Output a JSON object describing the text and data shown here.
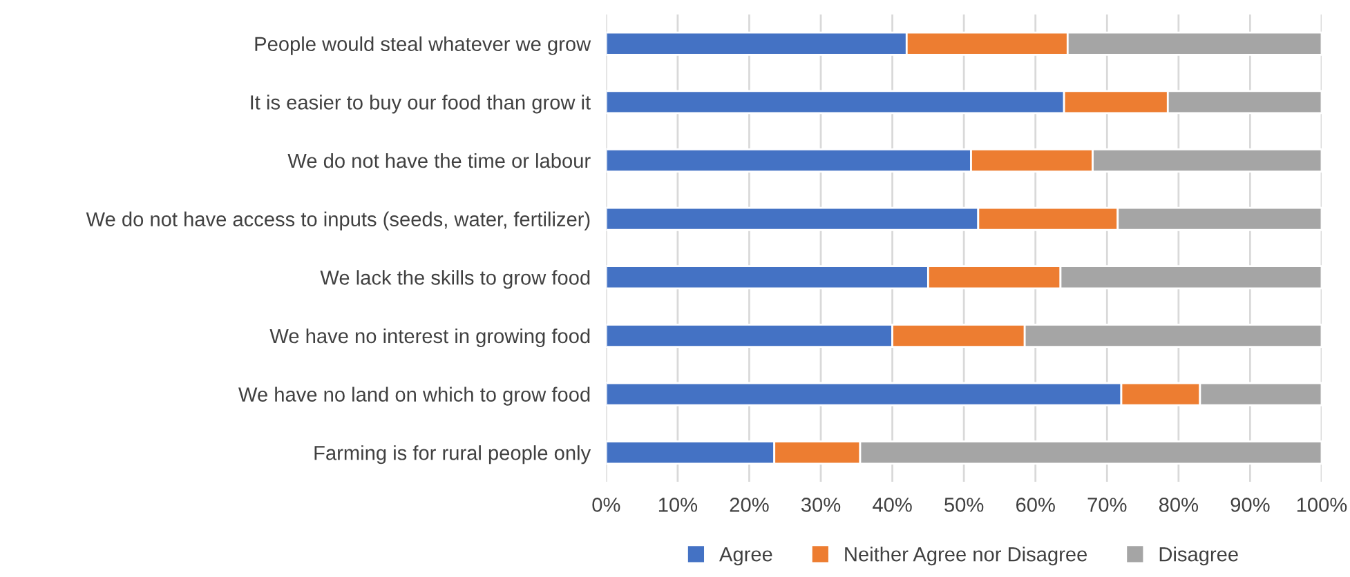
{
  "chart_data": {
    "type": "bar",
    "orientation": "horizontal",
    "stacked": true,
    "categories": [
      "People would steal whatever we grow",
      "It is easier to buy our food than grow it",
      "We do not have the time or labour",
      "We do not have access to inputs (seeds, water, fertilizer)",
      "We lack the skills to grow food",
      "We have no interest in growing food",
      "We have no land on which to grow food",
      "Farming is for rural people only"
    ],
    "series": [
      {
        "name": "Agree",
        "color": "#4472c4",
        "values": [
          42,
          64,
          51,
          52,
          45,
          40,
          72,
          23.5
        ]
      },
      {
        "name": "Neither Agree nor Disagree",
        "color": "#ed7d31",
        "values": [
          22.5,
          14.5,
          17,
          19.5,
          18.5,
          18.5,
          11,
          12
        ]
      },
      {
        "name": "Disagree",
        "color": "#a5a5a5",
        "values": [
          35.5,
          21.5,
          32,
          28.5,
          36.5,
          41.5,
          17,
          64.5
        ]
      }
    ],
    "xlim": [
      0,
      100
    ],
    "xticks": [
      {
        "value": 0,
        "label": "0%"
      },
      {
        "value": 10,
        "label": "10%"
      },
      {
        "value": 20,
        "label": "20%"
      },
      {
        "value": 30,
        "label": "30%"
      },
      {
        "value": 40,
        "label": "40%"
      },
      {
        "value": 50,
        "label": "50%"
      },
      {
        "value": 60,
        "label": "60%"
      },
      {
        "value": 70,
        "label": "70%"
      },
      {
        "value": 80,
        "label": "80%"
      },
      {
        "value": 90,
        "label": "90%"
      },
      {
        "value": 100,
        "label": "100%"
      }
    ],
    "grid": "x",
    "legend": "bottom"
  }
}
